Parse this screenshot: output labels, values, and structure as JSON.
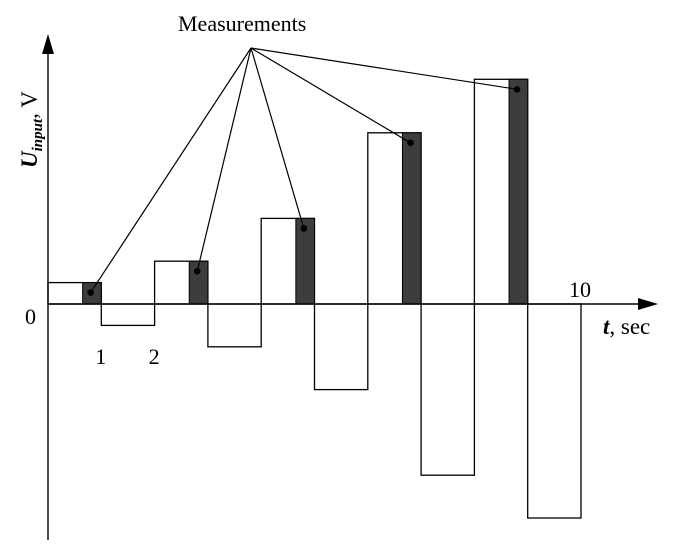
{
  "diagram": {
    "annotation": "Measurements",
    "y_axis": {
      "label_main": "U",
      "label_sub": "input",
      "label_unit": ", V"
    },
    "x_axis": {
      "label_var": "t",
      "label_unit": ", sec"
    },
    "origin_label": "0",
    "tick_labels": [
      "1",
      "2",
      "10"
    ],
    "colors": {
      "line": "#000000",
      "measurement_fill": "#3d3d3d",
      "background": "#ffffff"
    }
  },
  "chart_data": {
    "type": "step",
    "xlabel": "t, sec",
    "ylabel": "U_input, V",
    "tick_labels": [
      {
        "t": 1,
        "label": "1"
      },
      {
        "t": 2,
        "label": "2"
      },
      {
        "t": 10,
        "label": "10"
      }
    ],
    "xlim": [
      0,
      11.5
    ],
    "ylim": [
      -11,
      11
    ],
    "segments": [
      {
        "t0": 0,
        "t1": 1,
        "u": 1
      },
      {
        "t0": 1,
        "t1": 2,
        "u": -1
      },
      {
        "t0": 2,
        "t1": 3,
        "u": 2
      },
      {
        "t0": 3,
        "t1": 4,
        "u": -2
      },
      {
        "t0": 4,
        "t1": 5,
        "u": 4
      },
      {
        "t0": 5,
        "t1": 6,
        "u": -4
      },
      {
        "t0": 6,
        "t1": 7,
        "u": 8
      },
      {
        "t0": 7,
        "t1": 8,
        "u": -8
      },
      {
        "t0": 8,
        "t1": 9,
        "u": 10.5
      },
      {
        "t0": 9,
        "t1": 10,
        "u": -10
      }
    ],
    "measurements": [
      {
        "t0": 0.65,
        "t1": 1,
        "u": 1,
        "point_t": 0.8
      },
      {
        "t0": 2.65,
        "t1": 3,
        "u": 2,
        "point_t": 2.8
      },
      {
        "t0": 4.65,
        "t1": 5,
        "u": 4,
        "point_t": 4.8
      },
      {
        "t0": 6.65,
        "t1": 7,
        "u": 8,
        "point_t": 6.8
      },
      {
        "t0": 8.65,
        "t1": 9,
        "u": 10.5,
        "point_t": 8.8
      }
    ]
  }
}
